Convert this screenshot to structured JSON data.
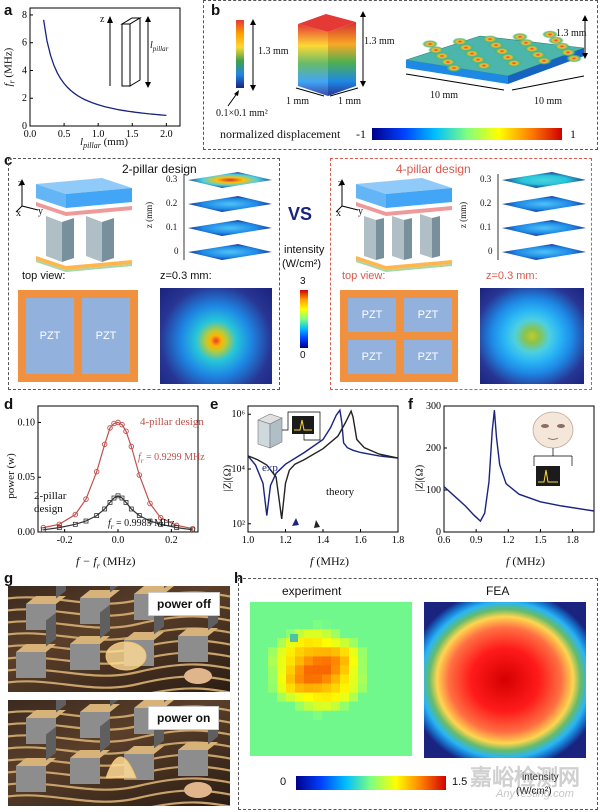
{
  "panels": {
    "a": "a",
    "b": "b",
    "c": "c",
    "d": "d",
    "e": "e",
    "f": "f",
    "g": "g",
    "h": "h"
  },
  "panel_a": {
    "ylabel_main": "f",
    "ylabel_sub": "r",
    "ylabel_unit": " (MHz)",
    "xlabel_main": "l",
    "xlabel_sub": "pillar",
    "xlabel_unit": " (mm)",
    "inset_axis": "z",
    "inset_label_main": "l",
    "inset_label_sub": "pillar"
  },
  "panel_b": {
    "dim_1_3_left": "1.3 mm",
    "cross_section": "0.1×0.1 mm²",
    "dim_1mm_a": "1 mm",
    "dim_1mm_b": "1 mm",
    "dim_1_3_mid": "1.3 mm",
    "dim_1_3_right": "1.3 mm",
    "dim_10mm_a": "10 mm",
    "dim_10mm_b": "10 mm",
    "colorbar_label": "normalized displacement",
    "colorbar_min": "-1",
    "colorbar_max": "1"
  },
  "panel_c": {
    "left_title": "2-pillar design",
    "right_title": "4-pillar design",
    "vs": "VS",
    "z_axis": "z (mm)",
    "z_ticks": [
      "0.3",
      "0.2",
      "0.1",
      "0"
    ],
    "axis_z": "z",
    "axis_x": "x",
    "axis_y": "y",
    "top_view": "top view:",
    "z_slice": "z=0.3 mm:",
    "pzt": "PZT",
    "intensity_title": "intensity",
    "intensity_unit": "(W/cm²)",
    "intensity_max": "3",
    "intensity_min": "0"
  },
  "panel_d": {
    "ylabel": "power (w)",
    "xlabel": "f − f",
    "xlabel_sub": "r",
    "xlabel_unit": " (MHz)",
    "label_4pillar": "4-pillar design",
    "label_4pillar_freq": "f",
    "label_4pillar_freq_sub": "r",
    "label_4pillar_freq_val": " = 0.9299 MHz",
    "label_2pillar_a": "2-pillar",
    "label_2pillar_b": "design",
    "label_2pillar_freq": "f",
    "label_2pillar_freq_sub": "r",
    "label_2pillar_freq_val": " = 0.9983 MHz"
  },
  "panel_e": {
    "ylabel": "|Z|(Ω)",
    "xlabel": "f",
    "xlabel_unit": " (MHz)",
    "label_exp": "exp.",
    "label_theory": "theory"
  },
  "panel_f": {
    "ylabel": "|Z|(Ω)",
    "xlabel": "f",
    "xlabel_unit": " (MHz)"
  },
  "panel_g": {
    "top_tag": "power off",
    "bottom_tag": "power on"
  },
  "panel_h": {
    "left_title": "experiment",
    "right_title": "FEA",
    "colorbar_min": "0",
    "colorbar_max": "1.5",
    "colorbar_label": "intensity",
    "colorbar_unit": "(W/cm²)"
  },
  "watermark": {
    "line1": "嘉峪检测网",
    "line2": "AnyTesting.com"
  },
  "chart_data": [
    {
      "id": "a",
      "type": "line",
      "x": [
        0.2,
        0.3,
        0.4,
        0.5,
        0.6,
        0.8,
        1.0,
        1.2,
        1.4,
        1.6,
        1.8,
        2.0
      ],
      "y": [
        7.6,
        5.1,
        3.8,
        3.05,
        2.55,
        1.9,
        1.53,
        1.28,
        1.09,
        0.96,
        0.85,
        0.77
      ],
      "xlim": [
        0,
        2.2
      ],
      "ylim": [
        0,
        8.5
      ],
      "xticks": [
        0.0,
        0.5,
        1.0,
        1.5,
        2.0
      ],
      "yticks": [
        0,
        2,
        4,
        6,
        8
      ]
    },
    {
      "id": "d",
      "type": "line",
      "xlim": [
        -0.3,
        0.3
      ],
      "ylim": [
        0,
        0.115
      ],
      "xticks": [
        -0.2,
        0.0,
        0.2
      ],
      "yticks": [
        0.0,
        0.05,
        0.1
      ],
      "ytick_labels": [
        "0.00",
        "0.05",
        "0.10"
      ],
      "series": [
        {
          "color": "#c0504d",
          "x": [
            -0.28,
            -0.22,
            -0.16,
            -0.12,
            -0.08,
            -0.05,
            -0.03,
            -0.015,
            0.0,
            0.015,
            0.03,
            0.05,
            0.08,
            0.12,
            0.16,
            0.22,
            0.28
          ],
          "y": [
            0.004,
            0.007,
            0.016,
            0.03,
            0.055,
            0.08,
            0.095,
            0.099,
            0.1,
            0.098,
            0.092,
            0.078,
            0.052,
            0.026,
            0.013,
            0.006,
            0.003
          ]
        },
        {
          "color": "#333333",
          "x": [
            -0.28,
            -0.22,
            -0.16,
            -0.12,
            -0.08,
            -0.05,
            -0.03,
            -0.015,
            0.0,
            0.015,
            0.03,
            0.05,
            0.08,
            0.12,
            0.16,
            0.22,
            0.28
          ],
          "y": [
            0.002,
            0.004,
            0.007,
            0.01,
            0.015,
            0.021,
            0.027,
            0.031,
            0.033,
            0.031,
            0.027,
            0.021,
            0.015,
            0.01,
            0.007,
            0.004,
            0.002
          ]
        }
      ]
    },
    {
      "id": "e",
      "type": "line",
      "ylog": true,
      "xlim": [
        1.0,
        1.8
      ],
      "ylim": [
        50,
        2000000
      ],
      "xticks": [
        1.0,
        1.2,
        1.4,
        1.6,
        1.8
      ],
      "yticks": [
        100,
        10000,
        1000000
      ],
      "ytick_labels": [
        "10²",
        "10⁴",
        "10⁶"
      ],
      "series": [
        {
          "color": "#1a237e",
          "x": [
            1.0,
            1.04,
            1.08,
            1.1,
            1.12,
            1.15,
            1.2,
            1.3,
            1.4,
            1.44,
            1.47,
            1.49,
            1.5,
            1.51,
            1.53,
            1.56,
            1.6,
            1.7,
            1.8
          ],
          "y": [
            30000,
            14000,
            3000,
            200,
            2500,
            7000,
            15000,
            40000,
            120000,
            320000,
            900000,
            1400000,
            500000,
            90000,
            60000,
            48000,
            40000,
            30000,
            25000
          ]
        },
        {
          "color": "#222222",
          "x": [
            1.0,
            1.05,
            1.1,
            1.15,
            1.18,
            1.2,
            1.22,
            1.25,
            1.3,
            1.4,
            1.48,
            1.52,
            1.55,
            1.56,
            1.58,
            1.62,
            1.7,
            1.8
          ],
          "y": [
            30000,
            22000,
            14000,
            5000,
            150,
            3000,
            9000,
            15000,
            22000,
            55000,
            160000,
            500000,
            1300000,
            800000,
            120000,
            60000,
            35000,
            25000
          ]
        }
      ]
    },
    {
      "id": "f",
      "type": "line",
      "xlim": [
        0.6,
        2.0
      ],
      "ylim": [
        0,
        300
      ],
      "xticks": [
        0.6,
        0.9,
        1.2,
        1.5,
        1.8
      ],
      "yticks": [
        0,
        100,
        200,
        300
      ],
      "x": [
        0.6,
        0.7,
        0.8,
        0.88,
        0.94,
        0.98,
        1.02,
        1.05,
        1.07,
        1.09,
        1.12,
        1.18,
        1.3,
        1.5,
        1.7,
        2.0
      ],
      "y": [
        108,
        85,
        62,
        40,
        26,
        45,
        120,
        240,
        290,
        225,
        160,
        115,
        90,
        72,
        62,
        50
      ]
    },
    {
      "id": "h",
      "type": "heatmap",
      "colorbar_range": [
        0,
        1.5
      ],
      "maps": [
        "experiment",
        "FEA"
      ]
    }
  ]
}
